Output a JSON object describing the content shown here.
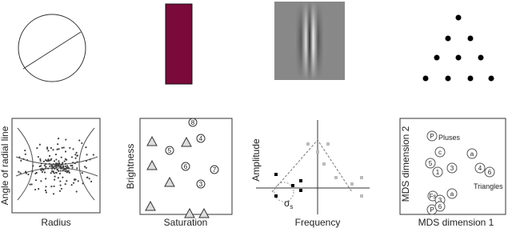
{
  "panels": [
    {
      "y_label": "Angle of radial line",
      "x_label": "Radius"
    },
    {
      "y_label": "Brightness",
      "x_label": "Saturation",
      "point_labels": [
        "8",
        "4",
        "5",
        "6",
        "7",
        "3"
      ]
    },
    {
      "y_label": "Amplitude",
      "x_label": "Frequency",
      "annotation": {
        "symbol": "σ",
        "subscript": "s"
      }
    },
    {
      "y_label": "MDS dimension 2",
      "x_label": "MDS dimension 1",
      "group_labels": [
        "Pluses",
        "Triangles"
      ],
      "point_labels": [
        "P",
        "5",
        "1",
        "c",
        "3",
        "Fs",
        "3",
        "a",
        "P",
        "6",
        "4",
        "a",
        "6"
      ]
    }
  ]
}
